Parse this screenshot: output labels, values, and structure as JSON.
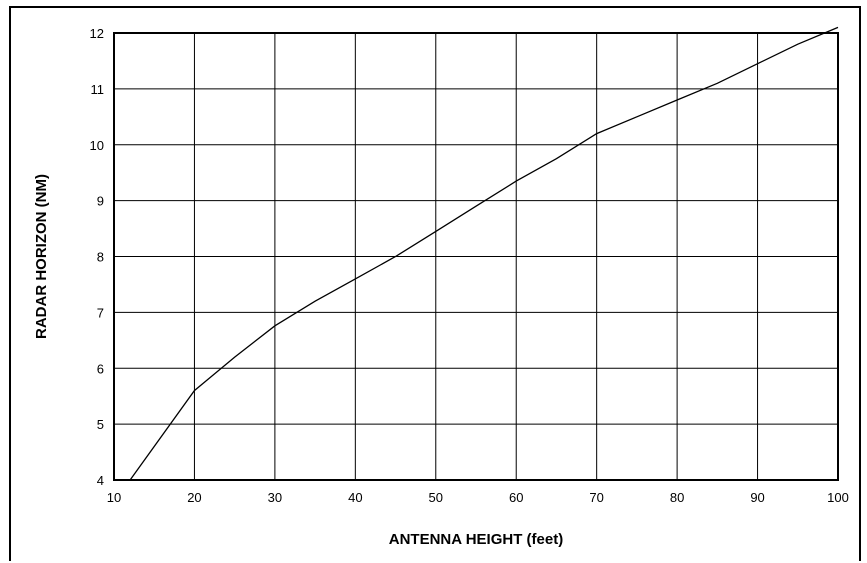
{
  "chart_data": {
    "type": "line",
    "title": "",
    "xlabel": "ANTENNA HEIGHT (feet)",
    "ylabel": "RADAR HORIZON (NM)",
    "xlim": [
      10,
      100
    ],
    "ylim": [
      4,
      12
    ],
    "xticks": [
      10,
      20,
      30,
      40,
      50,
      60,
      70,
      80,
      90,
      100
    ],
    "yticks": [
      4,
      5,
      6,
      7,
      8,
      9,
      10,
      11,
      12
    ],
    "grid": true,
    "legend": "none",
    "line_color": "#000000",
    "series": [
      {
        "x": [
          12,
          20,
          25,
          30,
          35,
          40,
          45,
          50,
          55,
          60,
          65,
          70,
          75,
          80,
          85,
          90,
          95,
          100
        ],
        "y": [
          4.0,
          5.6,
          6.2,
          6.76,
          7.2,
          7.6,
          8.0,
          8.45,
          8.9,
          9.35,
          9.75,
          10.2,
          10.5,
          10.8,
          11.1,
          11.45,
          11.8,
          12.1
        ]
      }
    ]
  }
}
